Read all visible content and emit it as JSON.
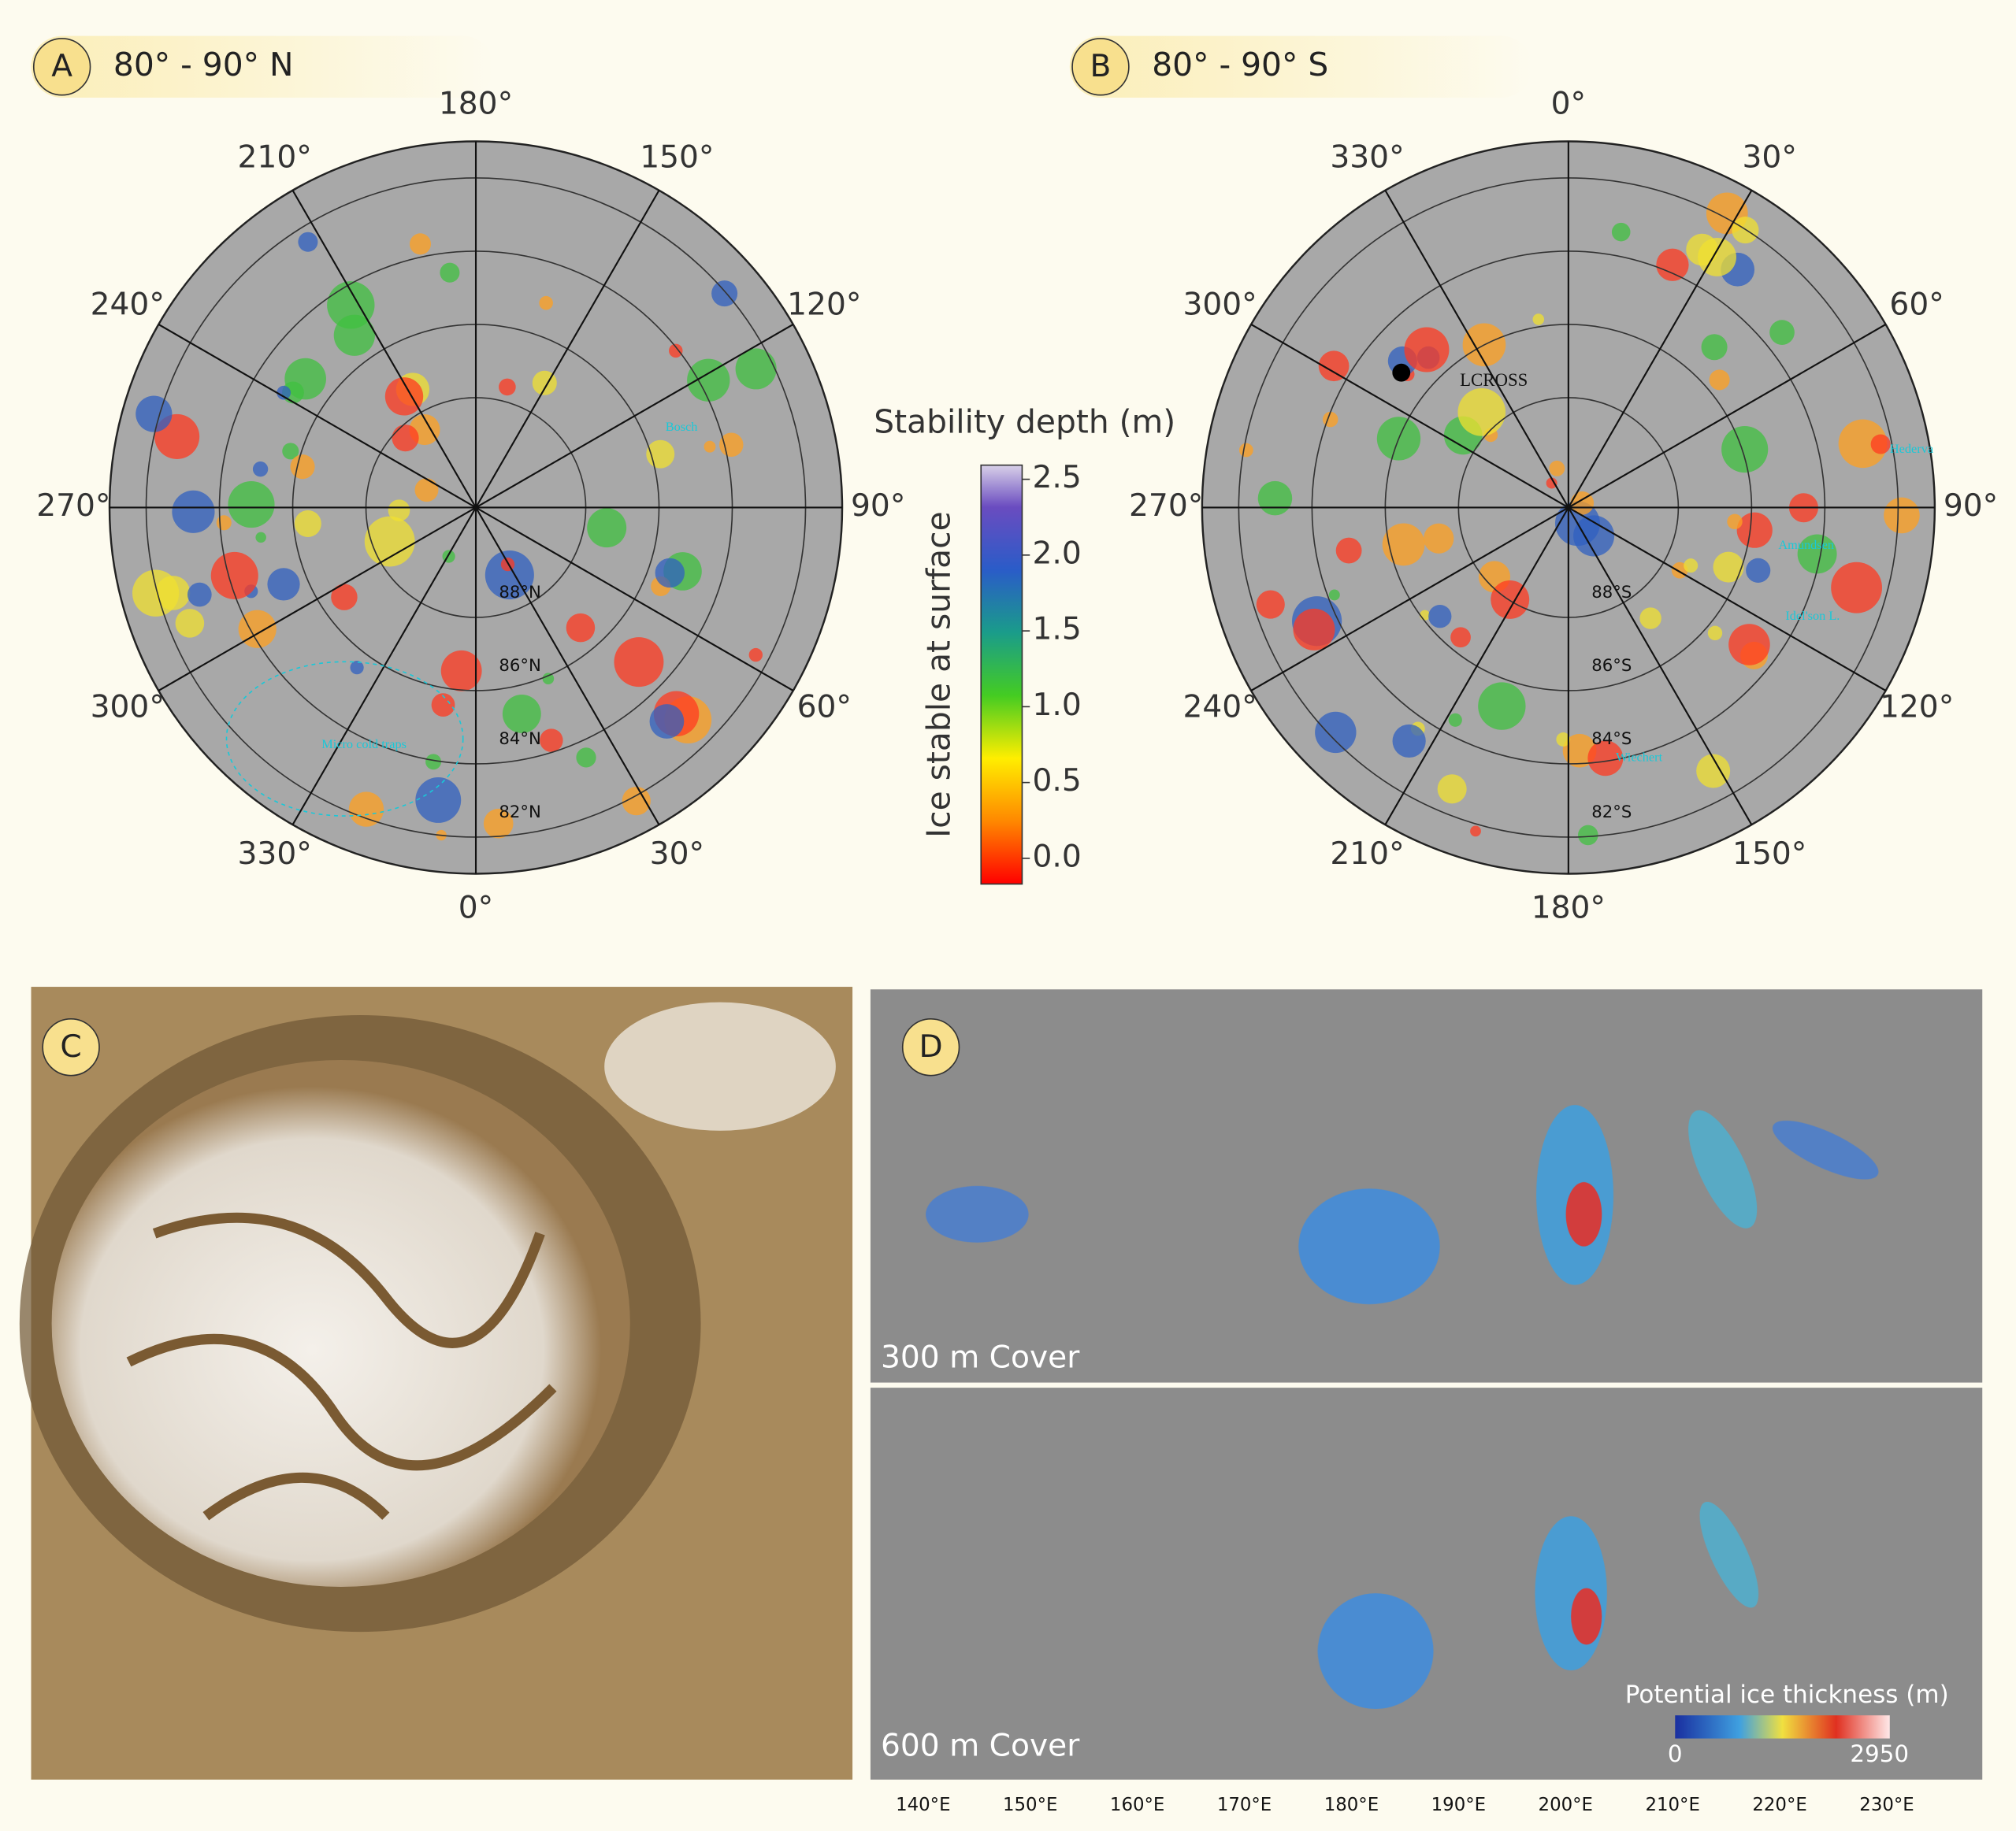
{
  "panels": {
    "a": {
      "label": "A",
      "title": "80° - 90° N",
      "longitudes": [
        "180°",
        "150°",
        "120°",
        "90°",
        "60°",
        "30°",
        "0°",
        "330°",
        "300°",
        "270°",
        "240°",
        "210°"
      ],
      "latitudes": [
        "88°N",
        "86°N",
        "84°N",
        "82°N"
      ],
      "annotations": [
        "Bosch",
        "Micro cold traps"
      ]
    },
    "b": {
      "label": "B",
      "title": "80° - 90° S",
      "longitudes": [
        "0°",
        "30°",
        "60°",
        "90°",
        "120°",
        "150°",
        "180°",
        "210°",
        "240°",
        "270°",
        "300°",
        "330°"
      ],
      "latitudes": [
        "88°S",
        "86°S",
        "84°S",
        "82°S"
      ],
      "annotations": [
        "LCROSS",
        "Hederva",
        "Amundsen",
        "Idel'son L.",
        "Wiechert"
      ]
    },
    "colorbar": {
      "title": "Stability depth (m)",
      "axis_label": "Ice stable at surface",
      "ticks": [
        "2.5",
        "2.0",
        "1.5",
        "1.0",
        "0.5",
        "0.0"
      ]
    },
    "c": {
      "label": "C"
    },
    "d": {
      "label": "D",
      "top_label": "300 m Cover",
      "bottom_label": "600 m Cover",
      "legend_title": "Potential ice thickness (m)",
      "legend_min": "0",
      "legend_max": "2950",
      "longitudes": [
        "140°E",
        "150°E",
        "160°E",
        "170°E",
        "180°E",
        "190°E",
        "200°E",
        "210°E",
        "220°E",
        "230°E"
      ]
    }
  }
}
